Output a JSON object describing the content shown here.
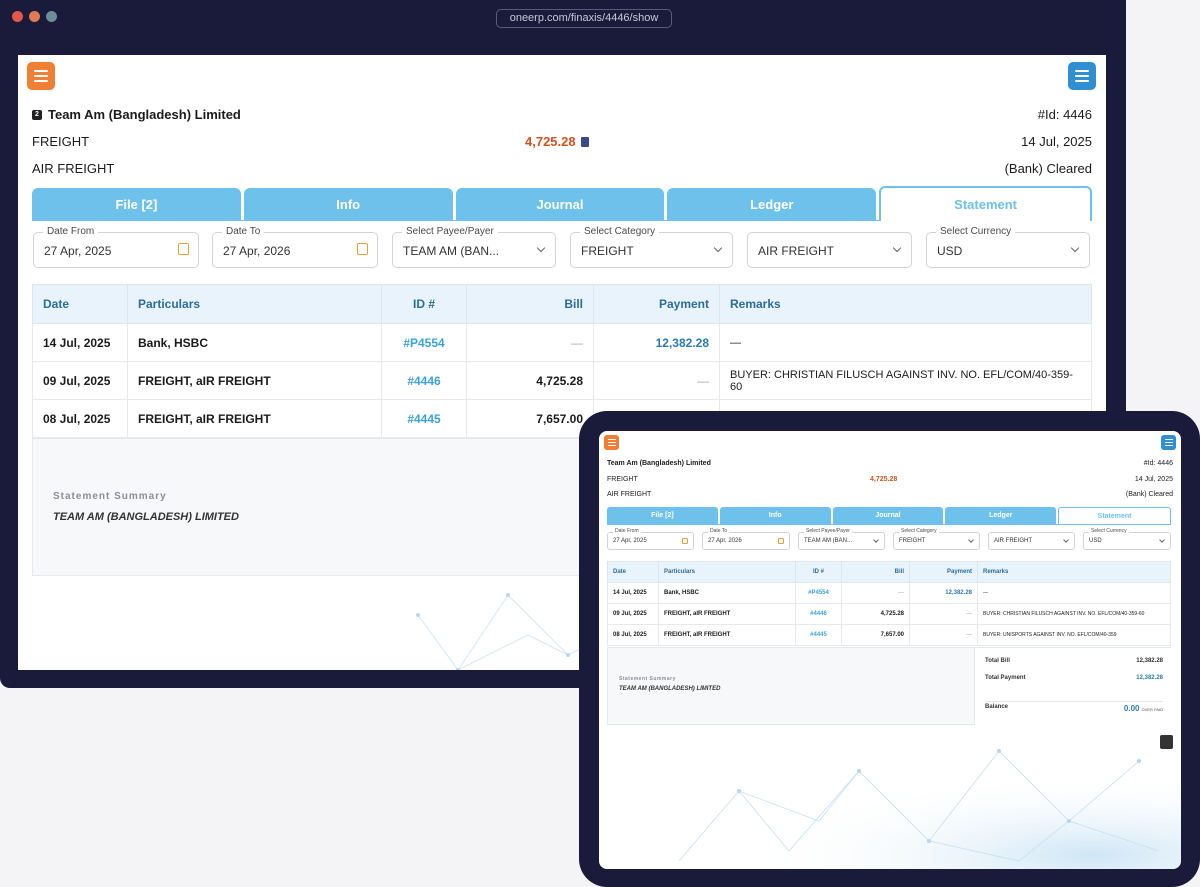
{
  "browser": {
    "url": "oneerp.com/finaxis/4446/show"
  },
  "header": {
    "company": "Team Am (Bangladesh) Limited",
    "id_label": "#Id: 4446",
    "type": "FREIGHT",
    "amount": "4,725.28",
    "date": "14 Jul, 2025",
    "subtype": "AIR FREIGHT",
    "status": "(Bank) Cleared"
  },
  "tabs": [
    "File [2]",
    "Info",
    "Journal",
    "Ledger",
    "Statement"
  ],
  "filters": {
    "date_from": {
      "label": "Date From",
      "value": "27 Apr, 2025"
    },
    "date_to": {
      "label": "Date To",
      "value": "27 Apr, 2026"
    },
    "payee": {
      "label": "Select Payee/Payer",
      "value": "TEAM AM (BAN..."
    },
    "category": {
      "label": "Select Category",
      "value": "FREIGHT"
    },
    "subcategory": {
      "value": "AIR FREIGHT"
    },
    "currency": {
      "label": "Select Currency",
      "value": "USD"
    }
  },
  "table": {
    "headers": [
      "Date",
      "Particulars",
      "ID #",
      "Bill",
      "Payment",
      "Remarks"
    ],
    "rows": [
      {
        "date": "14 Jul, 2025",
        "particulars": "Bank, HSBC",
        "id": "#P4554",
        "bill": "—",
        "payment": "12,382.28",
        "remarks": "—"
      },
      {
        "date": "09 Jul, 2025",
        "particulars": "FREIGHT, aIR FREIGHT",
        "id": "#4446",
        "bill": "4,725.28",
        "payment": "—",
        "remarks": "BUYER: CHRISTIAN FILUSCH AGAINST INV. NO. EFL/COM/40-359-60"
      },
      {
        "date": "08 Jul, 2025",
        "particulars": "FREIGHT, aIR FREIGHT",
        "id": "#4445",
        "bill": "7,657.00",
        "payment": "—",
        "remarks": "BUYER: UNISPORTS AGAINST INV. NO. EFL/COM/40-359"
      }
    ]
  },
  "summary": {
    "title": "Statement Summary",
    "name": "TEAM AM (BANGLADESH) LIMITED",
    "total_bill_label": "Total Bill",
    "total_bill": "12,382.28",
    "total_payment_label": "Total Payment",
    "total_payment": "12,382.28",
    "balance_label": "Balance",
    "balance": "0.00",
    "balance_note": "OVER PAID"
  },
  "tablet_header": {
    "id_label": "#Id: 4446"
  },
  "colors": {
    "accent_orange": "#ef7f35",
    "accent_blue": "#2f8fd0",
    "tab_blue": "#6ec1ea",
    "amount_red": "#d2521f",
    "frame": "#1a1a3a"
  },
  "icons": [
    "list-menu-icon",
    "hamburger-menu-icon",
    "calculator-icon",
    "calendar-icon",
    "chevron-down-icon",
    "pdf-icon"
  ]
}
